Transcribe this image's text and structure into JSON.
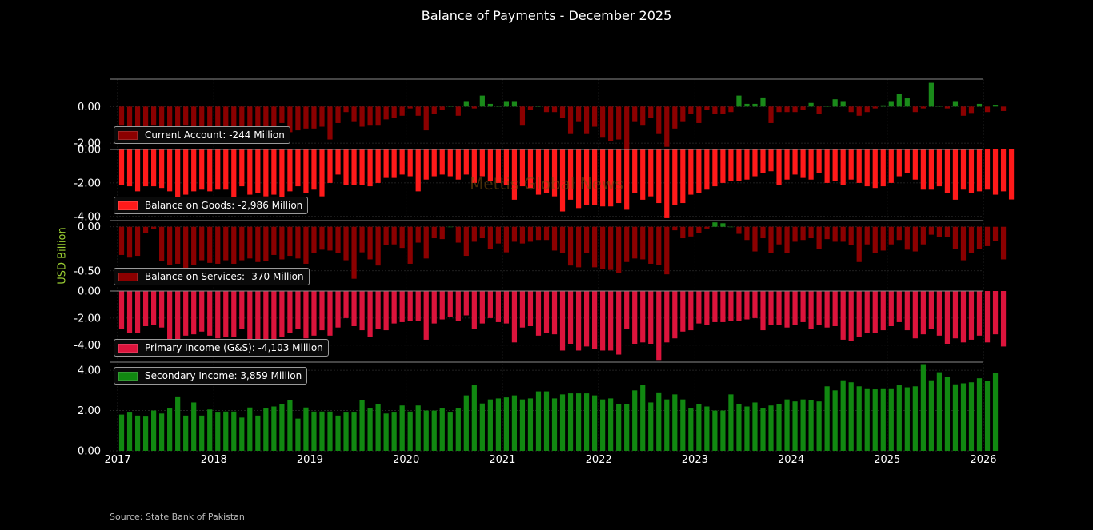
{
  "title": "Balance of Payments - December 2025",
  "y_axis_label": "USD Billion",
  "source": "Source: State Bank of Pakistan",
  "watermark": "Mettis Global News",
  "colors": {
    "current_account_neg": "#8b0000",
    "current_account_pos": "#1a8a1a",
    "goods": "#ff1a1a",
    "services_neg": "#8b0000",
    "services_pos": "#1a8a1a",
    "primary_income": "#dc143c",
    "secondary_income": "#118811",
    "grid": "#2a2a2a",
    "separator": "#8a8a8a"
  },
  "legends": {
    "current_account": "Current Account: -244 Million",
    "goods": "Balance on Goods: -2,986 Million",
    "services": "Balance on Services: -370 Million",
    "primary": "Primary Income (G&S): -4,103 Million",
    "secondary": "Secondary Income: 3,859 Million"
  },
  "chart_data": {
    "type": "bar",
    "x_range": [
      "2016-12",
      "2026-01"
    ],
    "x_ticks": [
      "2017",
      "2018",
      "2019",
      "2020",
      "2021",
      "2022",
      "2023",
      "2024",
      "2025",
      "2026"
    ],
    "months_start": "2017-01",
    "panels": [
      {
        "name": "Current Account",
        "ylim": [
          -2.3,
          1.5
        ],
        "ticks": [
          "0.00",
          "-2.00"
        ],
        "tick_values": [
          0,
          -2
        ],
        "values": [
          -1.0,
          -1.4,
          -1.5,
          -1.1,
          -1.0,
          -1.2,
          -1.4,
          -1.3,
          -1.0,
          -1.3,
          -1.2,
          -1.3,
          -1.4,
          -1.3,
          -1.3,
          -1.2,
          -1.3,
          -1.5,
          -1.4,
          -1.3,
          -0.9,
          -1.4,
          -1.3,
          -1.2,
          -1.2,
          -1.1,
          -1.8,
          -0.9,
          -0.3,
          -0.8,
          -1.1,
          -1.0,
          -1.0,
          -0.7,
          -0.6,
          -0.5,
          -0.1,
          -0.5,
          -1.3,
          -0.4,
          -0.2,
          0.05,
          -0.5,
          0.3,
          -0.1,
          0.6,
          0.15,
          0.05,
          0.3,
          0.3,
          -1.0,
          -0.2,
          0.05,
          -0.3,
          -0.3,
          -0.6,
          -1.5,
          -0.8,
          -1.5,
          -1.1,
          -1.7,
          -1.9,
          -1.8,
          -2.3,
          -0.8,
          -1.0,
          -0.6,
          -1.5,
          -2.2,
          -1.2,
          -0.8,
          -0.4,
          -0.9,
          -0.2,
          -0.4,
          -0.4,
          -0.3,
          0.6,
          0.15,
          0.15,
          0.5,
          -0.9,
          -0.3,
          -0.3,
          -0.3,
          -0.2,
          0.2,
          -0.4,
          0.02,
          0.4,
          0.3,
          -0.3,
          -0.5,
          -0.3,
          -0.1,
          0.07,
          0.3,
          0.7,
          0.45,
          -0.3,
          -0.1,
          1.3,
          0.05,
          -0.1,
          0.3,
          -0.5,
          -0.35,
          0.15,
          -0.3,
          0.1,
          -0.244
        ]
      },
      {
        "name": "Balance on Goods",
        "ylim": [
          -4.2,
          0
        ],
        "ticks": [
          "0.00",
          "-2.00",
          "-4.00"
        ],
        "tick_values": [
          0,
          -2,
          -4
        ],
        "values": [
          -2.1,
          -2.2,
          -2.5,
          -2.2,
          -2.2,
          -2.3,
          -2.5,
          -3.0,
          -2.7,
          -2.5,
          -2.4,
          -2.5,
          -2.4,
          -2.4,
          -2.9,
          -2.2,
          -2.7,
          -2.6,
          -2.8,
          -2.7,
          -2.9,
          -2.5,
          -2.2,
          -2.6,
          -2.4,
          -2.8,
          -2.0,
          -1.5,
          -2.1,
          -2.1,
          -2.1,
          -2.2,
          -2.0,
          -1.7,
          -1.7,
          -1.5,
          -1.6,
          -2.5,
          -1.8,
          -1.6,
          -1.5,
          -1.6,
          -1.8,
          -1.5,
          -2.0,
          -1.6,
          -1.9,
          -2.0,
          -2.1,
          -3.0,
          -2.2,
          -2.3,
          -2.7,
          -2.6,
          -2.8,
          -3.7,
          -3.0,
          -3.5,
          -3.3,
          -3.3,
          -3.4,
          -3.4,
          -3.2,
          -3.6,
          -2.6,
          -3.0,
          -2.8,
          -3.2,
          -4.1,
          -3.3,
          -3.2,
          -2.7,
          -2.6,
          -2.4,
          -2.2,
          -2.0,
          -1.9,
          -1.9,
          -1.8,
          -1.6,
          -1.4,
          -1.3,
          -2.1,
          -1.8,
          -1.5,
          -1.7,
          -1.8,
          -1.4,
          -2.0,
          -1.9,
          -2.1,
          -1.8,
          -2.0,
          -2.2,
          -2.3,
          -2.2,
          -2.0,
          -1.6,
          -1.4,
          -1.8,
          -2.4,
          -2.4,
          -2.2,
          -2.6,
          -3.0,
          -2.4,
          -2.6,
          -2.5,
          -2.4,
          -2.7,
          -2.5,
          -2.986
        ]
      },
      {
        "name": "Balance on Services",
        "ylim": [
          -0.72,
          0.07
        ],
        "ticks": [
          "0.00",
          "-0.50"
        ],
        "tick_values": [
          0,
          -0.5
        ],
        "values": [
          -0.32,
          -0.35,
          -0.33,
          -0.07,
          -0.03,
          -0.39,
          -0.43,
          -0.42,
          -0.48,
          -0.43,
          -0.38,
          -0.41,
          -0.42,
          -0.38,
          -0.42,
          -0.38,
          -0.36,
          -0.4,
          -0.39,
          -0.32,
          -0.37,
          -0.33,
          -0.36,
          -0.42,
          -0.3,
          -0.26,
          -0.27,
          -0.3,
          -0.38,
          -0.59,
          -0.29,
          -0.37,
          -0.44,
          -0.21,
          -0.2,
          -0.24,
          -0.42,
          -0.18,
          -0.36,
          -0.13,
          -0.14,
          0.0,
          -0.18,
          -0.33,
          -0.17,
          -0.13,
          -0.25,
          -0.19,
          -0.29,
          -0.17,
          -0.19,
          -0.17,
          -0.15,
          -0.15,
          -0.27,
          -0.3,
          -0.44,
          -0.46,
          -0.3,
          -0.46,
          -0.48,
          -0.49,
          -0.52,
          -0.4,
          -0.36,
          -0.37,
          -0.42,
          -0.43,
          -0.54,
          -0.04,
          -0.13,
          -0.11,
          -0.07,
          -0.02,
          0.05,
          0.04,
          0.0,
          -0.08,
          -0.15,
          -0.28,
          -0.13,
          -0.3,
          -0.2,
          -0.3,
          -0.17,
          -0.15,
          -0.13,
          -0.25,
          -0.14,
          -0.17,
          -0.17,
          -0.21,
          -0.4,
          -0.2,
          -0.3,
          -0.27,
          -0.2,
          -0.15,
          -0.26,
          -0.28,
          -0.2,
          -0.09,
          -0.12,
          -0.12,
          -0.25,
          -0.38,
          -0.3,
          -0.25,
          -0.22,
          -0.16,
          -0.37
        ]
      },
      {
        "name": "Primary Income (G&S)",
        "ylim": [
          -5.2,
          0
        ],
        "ticks": [
          "0.00",
          "-2.00",
          "-4.00"
        ],
        "tick_values": [
          0,
          -2,
          -4
        ],
        "values": [
          -2.8,
          -3.1,
          -3.1,
          -2.6,
          -2.5,
          -2.7,
          -3.8,
          -3.7,
          -3.3,
          -3.2,
          -3.0,
          -3.3,
          -3.5,
          -3.4,
          -3.4,
          -2.8,
          -3.6,
          -3.7,
          -3.7,
          -3.6,
          -3.4,
          -3.1,
          -2.8,
          -3.5,
          -3.3,
          -2.9,
          -3.3,
          -2.7,
          -2.0,
          -2.6,
          -2.9,
          -3.4,
          -2.8,
          -2.9,
          -2.4,
          -2.3,
          -2.2,
          -2.2,
          -3.6,
          -2.4,
          -2.1,
          -1.9,
          -2.2,
          -1.8,
          -2.8,
          -2.4,
          -2.0,
          -2.3,
          -2.4,
          -3.8,
          -2.7,
          -2.6,
          -3.3,
          -3.1,
          -3.2,
          -4.4,
          -3.9,
          -4.4,
          -4.1,
          -4.3,
          -4.4,
          -4.4,
          -4.7,
          -2.8,
          -3.9,
          -3.8,
          -3.9,
          -5.1,
          -3.8,
          -3.5,
          -3.0,
          -2.9,
          -2.4,
          -2.5,
          -2.3,
          -2.3,
          -2.2,
          -2.2,
          -2.1,
          -2.0,
          -2.9,
          -2.5,
          -2.5,
          -2.7,
          -2.5,
          -2.3,
          -2.8,
          -2.5,
          -2.7,
          -2.6,
          -3.6,
          -3.7,
          -3.4,
          -3.1,
          -3.1,
          -2.9,
          -2.6,
          -2.3,
          -2.9,
          -3.5,
          -3.2,
          -2.8,
          -3.3,
          -3.9,
          -3.5,
          -3.8,
          -3.6,
          -3.3,
          -3.8,
          -3.2,
          -4.103
        ]
      },
      {
        "name": "Secondary Income",
        "ylim": [
          0,
          4.4
        ],
        "ticks": [
          "4.00",
          "2.00",
          "0.00"
        ],
        "tick_values": [
          4,
          2,
          0
        ],
        "values": [
          1.8,
          1.9,
          1.75,
          1.7,
          2.0,
          1.85,
          2.1,
          2.7,
          1.75,
          2.4,
          1.75,
          2.05,
          1.9,
          1.95,
          1.95,
          1.65,
          2.15,
          1.75,
          2.1,
          2.2,
          2.3,
          2.5,
          1.6,
          2.15,
          1.95,
          1.95,
          1.95,
          1.75,
          1.9,
          1.9,
          2.5,
          2.1,
          2.3,
          1.85,
          1.9,
          2.25,
          1.95,
          2.25,
          2.0,
          2.0,
          2.1,
          1.9,
          2.1,
          2.75,
          3.25,
          2.35,
          2.55,
          2.6,
          2.65,
          2.75,
          2.55,
          2.6,
          2.95,
          2.95,
          2.6,
          2.8,
          2.85,
          2.85,
          2.85,
          2.75,
          2.55,
          2.6,
          2.3,
          2.3,
          3.0,
          3.25,
          2.4,
          2.9,
          2.55,
          2.8,
          2.55,
          2.1,
          2.3,
          2.2,
          2.0,
          2.0,
          2.8,
          2.3,
          2.2,
          2.4,
          2.1,
          2.25,
          2.3,
          2.55,
          2.45,
          2.55,
          2.5,
          2.45,
          3.2,
          3.0,
          3.5,
          3.4,
          3.2,
          3.1,
          3.05,
          3.1,
          3.1,
          3.25,
          3.15,
          3.2,
          4.3,
          3.5,
          3.9,
          3.65,
          3.3,
          3.35,
          3.4,
          3.6,
          3.45,
          3.859
        ]
      }
    ]
  }
}
